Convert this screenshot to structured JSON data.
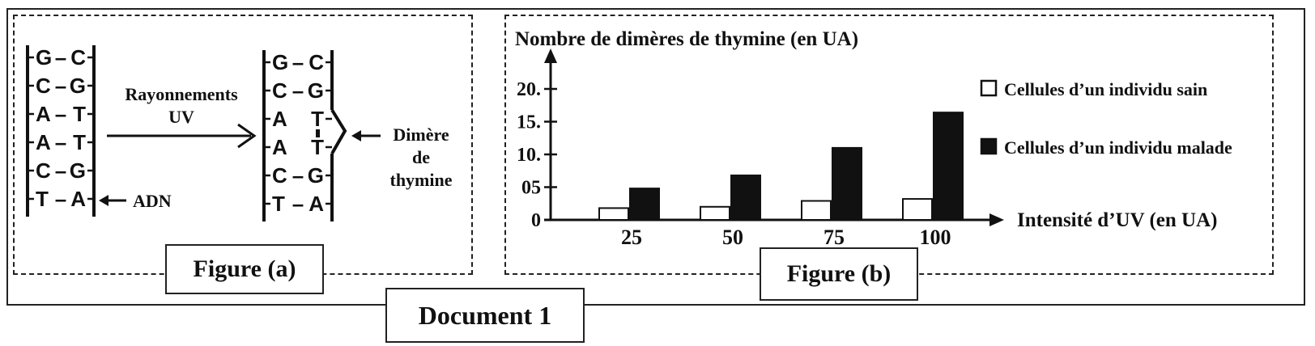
{
  "figure_a": {
    "caption": "Figure (a)",
    "left_strand": {
      "pairs": [
        {
          "left": "G",
          "right": "C"
        },
        {
          "left": "C",
          "right": "G"
        },
        {
          "left": "A",
          "right": "T"
        },
        {
          "left": "A",
          "right": "T"
        },
        {
          "left": "C",
          "right": "G"
        },
        {
          "left": "T",
          "right": "A"
        }
      ],
      "label": "ADN"
    },
    "arrow_label_line1": "Rayonnements",
    "arrow_label_line2": "UV",
    "right_strand": {
      "pairs": [
        {
          "left": "G",
          "right": "C",
          "bond": "–"
        },
        {
          "left": "C",
          "right": "G",
          "bond": "–"
        },
        {
          "left": "A",
          "right": "T",
          "bond": ""
        },
        {
          "left": "A",
          "right": "T",
          "bond": ""
        },
        {
          "left": "C",
          "right": "G",
          "bond": "–"
        },
        {
          "left": "T",
          "right": "A",
          "bond": "–"
        }
      ]
    },
    "dimer_label_line1": "Dimère",
    "dimer_label_line2": "de",
    "dimer_label_line3": "thymine"
  },
  "figure_b": {
    "caption": "Figure (b)",
    "chart_data": {
      "type": "bar",
      "ylabel": "Nombre de dimères de thymine (en UA)",
      "xlabel": "Intensité d’UV (en UA)",
      "categories": [
        "25",
        "50",
        "75",
        "100"
      ],
      "yticks": [
        "0",
        "05",
        "10.",
        "15.",
        "20."
      ],
      "ylim": [
        0,
        20
      ],
      "series": [
        {
          "name": "Cellules d’un individu sain",
          "color": "#ffffff",
          "values": [
            1.8,
            2.0,
            2.9,
            3.2
          ]
        },
        {
          "name": "Cellules d’un individu malade",
          "color": "#111111",
          "values": [
            4.8,
            6.8,
            11.0,
            16.4
          ]
        }
      ],
      "legend": "top-right"
    }
  },
  "document_label": "Document 1"
}
